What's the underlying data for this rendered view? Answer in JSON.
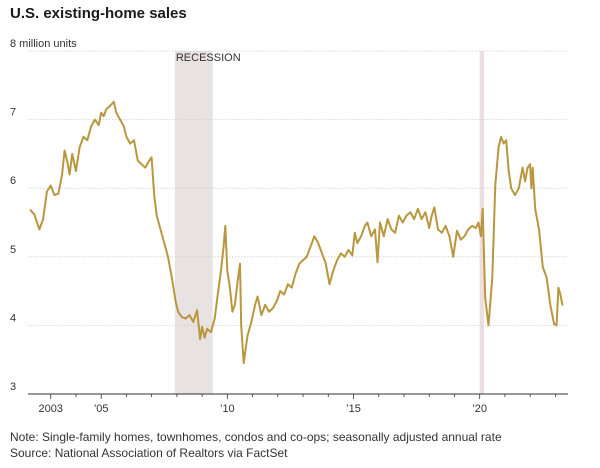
{
  "title": "U.S. existing-home sales",
  "notes": {
    "note": "Note: Single-family homes, townhomes, condos and co-ops; seasonally adjusted annual rate",
    "source": "Source: National Association of Realtors via FactSet"
  },
  "colors": {
    "line": "#b8973e",
    "recession": "#e9e2e2",
    "covid": "#efdede",
    "grid": "#cfcfcf",
    "axis": "#333333"
  },
  "chart_data": {
    "type": "line",
    "title": "U.S. existing-home sales",
    "ylabel": "8 million units",
    "ylim": [
      3,
      8
    ],
    "xlim": [
      2002.1,
      2023.5
    ],
    "y_ticks": [
      {
        "value": 8,
        "label": "8 million units"
      },
      {
        "value": 7,
        "label": "7"
      },
      {
        "value": 6,
        "label": "6"
      },
      {
        "value": 5,
        "label": "5"
      },
      {
        "value": 4,
        "label": "4"
      },
      {
        "value": 3,
        "label": "3"
      }
    ],
    "x_ticks": [
      {
        "value": 2003,
        "label": "2003"
      },
      {
        "value": 2004,
        "label": ""
      },
      {
        "value": 2005,
        "label": "’05"
      },
      {
        "value": 2006,
        "label": ""
      },
      {
        "value": 2007,
        "label": ""
      },
      {
        "value": 2008,
        "label": ""
      },
      {
        "value": 2009,
        "label": ""
      },
      {
        "value": 2010,
        "label": "’10"
      },
      {
        "value": 2011,
        "label": ""
      },
      {
        "value": 2012,
        "label": ""
      },
      {
        "value": 2013,
        "label": ""
      },
      {
        "value": 2014,
        "label": ""
      },
      {
        "value": 2015,
        "label": "’15"
      },
      {
        "value": 2016,
        "label": ""
      },
      {
        "value": 2017,
        "label": ""
      },
      {
        "value": 2018,
        "label": ""
      },
      {
        "value": 2019,
        "label": ""
      },
      {
        "value": 2020,
        "label": "’20"
      },
      {
        "value": 2021,
        "label": ""
      },
      {
        "value": 2022,
        "label": ""
      },
      {
        "value": 2023,
        "label": ""
      }
    ],
    "shaded_periods": [
      {
        "start": 2007.92,
        "end": 2009.42,
        "label": "RECESSION"
      },
      {
        "start": 2020.0,
        "end": 2020.17,
        "label": ""
      }
    ],
    "series": [
      {
        "values": [
          [
            2002.2,
            5.68
          ],
          [
            2002.35,
            5.62
          ],
          [
            2002.55,
            5.4
          ],
          [
            2002.7,
            5.55
          ],
          [
            2002.85,
            5.95
          ],
          [
            2003.0,
            6.04
          ],
          [
            2003.15,
            5.9
          ],
          [
            2003.3,
            5.92
          ],
          [
            2003.45,
            6.2
          ],
          [
            2003.55,
            6.55
          ],
          [
            2003.65,
            6.4
          ],
          [
            2003.75,
            6.2
          ],
          [
            2003.85,
            6.5
          ],
          [
            2004.0,
            6.25
          ],
          [
            2004.15,
            6.6
          ],
          [
            2004.3,
            6.75
          ],
          [
            2004.45,
            6.7
          ],
          [
            2004.6,
            6.9
          ],
          [
            2004.75,
            7.0
          ],
          [
            2004.9,
            6.92
          ],
          [
            2005.0,
            7.1
          ],
          [
            2005.1,
            7.05
          ],
          [
            2005.2,
            7.15
          ],
          [
            2005.35,
            7.2
          ],
          [
            2005.5,
            7.26
          ],
          [
            2005.6,
            7.1
          ],
          [
            2005.75,
            7.0
          ],
          [
            2005.9,
            6.9
          ],
          [
            2006.0,
            6.75
          ],
          [
            2006.15,
            6.65
          ],
          [
            2006.3,
            6.7
          ],
          [
            2006.45,
            6.4
          ],
          [
            2006.6,
            6.35
          ],
          [
            2006.75,
            6.3
          ],
          [
            2006.9,
            6.4
          ],
          [
            2007.0,
            6.45
          ],
          [
            2007.1,
            5.9
          ],
          [
            2007.2,
            5.6
          ],
          [
            2007.35,
            5.4
          ],
          [
            2007.5,
            5.2
          ],
          [
            2007.65,
            5.0
          ],
          [
            2007.8,
            4.7
          ],
          [
            2007.95,
            4.35
          ],
          [
            2008.05,
            4.2
          ],
          [
            2008.2,
            4.12
          ],
          [
            2008.35,
            4.1
          ],
          [
            2008.5,
            4.15
          ],
          [
            2008.65,
            4.05
          ],
          [
            2008.8,
            4.22
          ],
          [
            2008.92,
            3.8
          ],
          [
            2009.0,
            3.98
          ],
          [
            2009.1,
            3.82
          ],
          [
            2009.2,
            3.95
          ],
          [
            2009.35,
            3.9
          ],
          [
            2009.5,
            4.1
          ],
          [
            2009.6,
            4.4
          ],
          [
            2009.75,
            4.8
          ],
          [
            2009.85,
            5.15
          ],
          [
            2009.92,
            5.45
          ],
          [
            2010.0,
            4.8
          ],
          [
            2010.1,
            4.55
          ],
          [
            2010.2,
            4.2
          ],
          [
            2010.3,
            4.3
          ],
          [
            2010.4,
            4.62
          ],
          [
            2010.5,
            4.9
          ],
          [
            2010.55,
            4.0
          ],
          [
            2010.65,
            3.45
          ],
          [
            2010.8,
            3.85
          ],
          [
            2010.95,
            4.05
          ],
          [
            2011.1,
            4.3
          ],
          [
            2011.2,
            4.42
          ],
          [
            2011.35,
            4.15
          ],
          [
            2011.5,
            4.3
          ],
          [
            2011.65,
            4.2
          ],
          [
            2011.8,
            4.25
          ],
          [
            2011.95,
            4.35
          ],
          [
            2012.1,
            4.5
          ],
          [
            2012.25,
            4.45
          ],
          [
            2012.4,
            4.6
          ],
          [
            2012.55,
            4.55
          ],
          [
            2012.7,
            4.75
          ],
          [
            2012.85,
            4.9
          ],
          [
            2013.0,
            4.95
          ],
          [
            2013.15,
            5.0
          ],
          [
            2013.3,
            5.15
          ],
          [
            2013.45,
            5.3
          ],
          [
            2013.6,
            5.2
          ],
          [
            2013.75,
            5.05
          ],
          [
            2013.9,
            4.9
          ],
          [
            2014.05,
            4.6
          ],
          [
            2014.2,
            4.8
          ],
          [
            2014.35,
            4.95
          ],
          [
            2014.5,
            5.05
          ],
          [
            2014.65,
            5.0
          ],
          [
            2014.8,
            5.1
          ],
          [
            2014.95,
            5.02
          ],
          [
            2015.05,
            5.35
          ],
          [
            2015.15,
            5.2
          ],
          [
            2015.3,
            5.3
          ],
          [
            2015.45,
            5.45
          ],
          [
            2015.55,
            5.5
          ],
          [
            2015.7,
            5.3
          ],
          [
            2015.85,
            5.4
          ],
          [
            2015.95,
            4.92
          ],
          [
            2016.05,
            5.5
          ],
          [
            2016.2,
            5.3
          ],
          [
            2016.35,
            5.55
          ],
          [
            2016.5,
            5.4
          ],
          [
            2016.65,
            5.35
          ],
          [
            2016.8,
            5.6
          ],
          [
            2016.95,
            5.5
          ],
          [
            2017.1,
            5.6
          ],
          [
            2017.25,
            5.65
          ],
          [
            2017.4,
            5.55
          ],
          [
            2017.55,
            5.7
          ],
          [
            2017.7,
            5.55
          ],
          [
            2017.85,
            5.65
          ],
          [
            2018.0,
            5.42
          ],
          [
            2018.1,
            5.6
          ],
          [
            2018.2,
            5.72
          ],
          [
            2018.35,
            5.4
          ],
          [
            2018.5,
            5.35
          ],
          [
            2018.65,
            5.45
          ],
          [
            2018.8,
            5.3
          ],
          [
            2018.95,
            5.0
          ],
          [
            2019.1,
            5.38
          ],
          [
            2019.25,
            5.25
          ],
          [
            2019.4,
            5.3
          ],
          [
            2019.55,
            5.4
          ],
          [
            2019.7,
            5.45
          ],
          [
            2019.85,
            5.42
          ],
          [
            2019.95,
            5.5
          ],
          [
            2020.05,
            5.3
          ],
          [
            2020.12,
            5.7
          ],
          [
            2020.22,
            4.4
          ],
          [
            2020.35,
            4.0
          ],
          [
            2020.5,
            4.7
          ],
          [
            2020.62,
            6.05
          ],
          [
            2020.75,
            6.6
          ],
          [
            2020.85,
            6.75
          ],
          [
            2020.95,
            6.65
          ],
          [
            2021.05,
            6.7
          ],
          [
            2021.15,
            6.25
          ],
          [
            2021.25,
            6.0
          ],
          [
            2021.4,
            5.9
          ],
          [
            2021.55,
            6.0
          ],
          [
            2021.7,
            6.3
          ],
          [
            2021.8,
            6.1
          ],
          [
            2021.9,
            6.3
          ],
          [
            2022.0,
            6.35
          ],
          [
            2022.05,
            6.0
          ],
          [
            2022.1,
            6.3
          ],
          [
            2022.2,
            5.7
          ],
          [
            2022.35,
            5.4
          ],
          [
            2022.5,
            4.85
          ],
          [
            2022.65,
            4.7
          ],
          [
            2022.8,
            4.3
          ],
          [
            2022.95,
            4.02
          ],
          [
            2023.05,
            4.0
          ],
          [
            2023.12,
            4.55
          ],
          [
            2023.2,
            4.45
          ],
          [
            2023.28,
            4.3
          ]
        ]
      }
    ]
  }
}
